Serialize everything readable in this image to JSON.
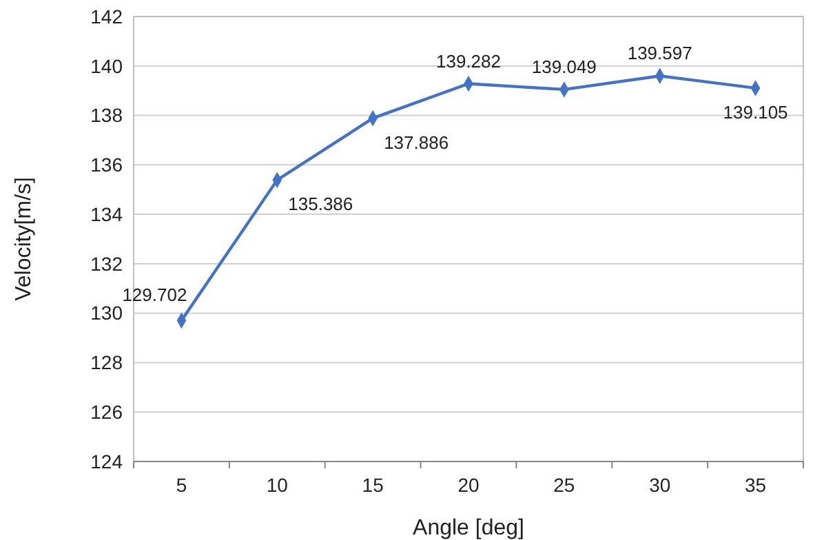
{
  "chart_data": {
    "type": "line",
    "xlabel": "Angle [deg]",
    "ylabel": "Velocity[m/s]",
    "categories": [
      "5",
      "10",
      "15",
      "20",
      "25",
      "30",
      "35"
    ],
    "values": [
      129.702,
      135.386,
      137.886,
      139.282,
      139.049,
      139.597,
      139.105
    ],
    "color": "#4472c4",
    "marker": "diamond",
    "line_style": "solid",
    "ylim": [
      124,
      142
    ],
    "yticks": [
      124,
      126,
      128,
      130,
      132,
      134,
      136,
      138,
      140,
      142
    ],
    "grid": "y",
    "data_labels": true
  }
}
